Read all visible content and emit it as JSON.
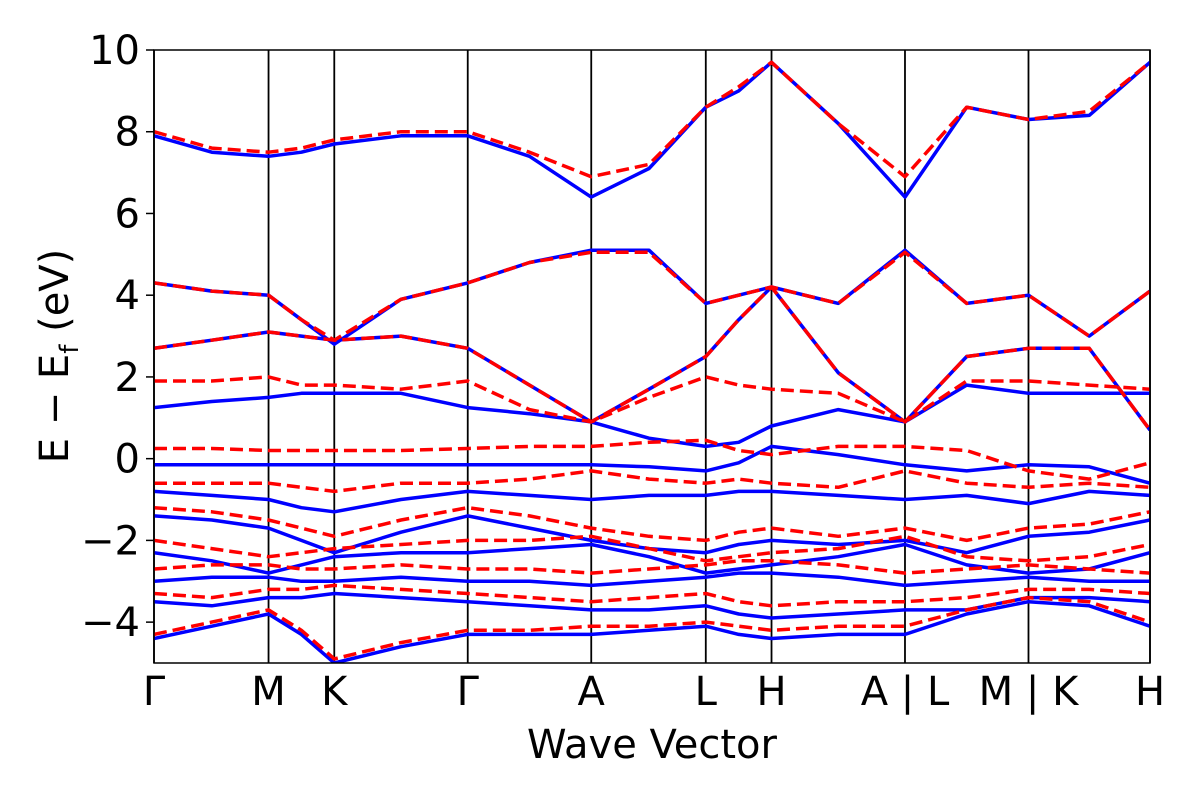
{
  "chart_data": {
    "type": "line",
    "xlabel": "Wave Vector",
    "ylabel": [
      "E − E",
      "f",
      " (eV)"
    ],
    "xlim": [
      0,
      1
    ],
    "ylim": [
      -5,
      10
    ],
    "xticks": [
      {
        "value": 0,
        "label": "Γ"
      },
      {
        "value": 0.115,
        "label": "M"
      },
      {
        "value": 0.181,
        "label": "K"
      },
      {
        "value": 0.315,
        "label": "Γ"
      },
      {
        "value": 0.439,
        "label": "A"
      },
      {
        "value": 0.554,
        "label": "L"
      },
      {
        "value": 0.62,
        "label": "H"
      },
      {
        "value": 0.754,
        "label": "A | L"
      },
      {
        "value": 0.878,
        "label": "M | K"
      },
      {
        "value": 1,
        "label": "H"
      }
    ],
    "yticks": [
      {
        "value": -4,
        "label": "−4"
      },
      {
        "value": -2,
        "label": "−2"
      },
      0,
      2,
      4,
      6,
      8,
      10
    ],
    "vlines": true,
    "x": [
      0,
      0.058,
      0.115,
      0.148,
      0.181,
      0.248,
      0.315,
      0.377,
      0.439,
      0.497,
      0.554,
      0.587,
      0.62,
      0.687,
      0.754,
      0.816,
      0.878,
      0.939,
      1
    ],
    "series": [
      {
        "color": "#0000ff",
        "dashed": false,
        "values": [
          7.9,
          7.5,
          7.4,
          7.5,
          7.7,
          7.9,
          7.9,
          7.4,
          6.4,
          7.1,
          8.6,
          9.0,
          9.7,
          8.2,
          6.4,
          8.6,
          8.3,
          8.4,
          9.7
        ]
      },
      {
        "color": "#0000ff",
        "dashed": false,
        "values": [
          4.3,
          4.1,
          4.0,
          3.4,
          2.8,
          3.9,
          4.3,
          4.8,
          5.1,
          5.1,
          3.8,
          4.0,
          4.2,
          3.8,
          5.1,
          3.8,
          4.0,
          3.0,
          4.1
        ]
      },
      {
        "color": "#0000ff",
        "dashed": false,
        "values": [
          2.7,
          2.9,
          3.1,
          3.0,
          2.9,
          3.0,
          2.7,
          1.8,
          0.9,
          1.7,
          2.5,
          3.4,
          4.2,
          2.1,
          0.9,
          2.5,
          2.7,
          2.7,
          0.7
        ]
      },
      {
        "color": "#0000ff",
        "dashed": false,
        "values": [
          1.25,
          1.4,
          1.5,
          1.6,
          1.6,
          1.6,
          1.25,
          1.1,
          0.9,
          0.5,
          0.3,
          0.4,
          0.8,
          1.2,
          0.9,
          1.8,
          1.6,
          1.6,
          1.6
        ]
      },
      {
        "color": "#0000ff",
        "dashed": false,
        "values": [
          -0.15,
          -0.15,
          -0.15,
          -0.15,
          -0.15,
          -0.15,
          -0.15,
          -0.15,
          -0.15,
          -0.2,
          -0.3,
          -0.1,
          0.3,
          0.1,
          -0.15,
          -0.3,
          -0.15,
          -0.2,
          -0.6
        ]
      },
      {
        "color": "#0000ff",
        "dashed": false,
        "values": [
          -0.8,
          -0.9,
          -1.0,
          -1.2,
          -1.3,
          -1.0,
          -0.8,
          -0.9,
          -1.0,
          -0.9,
          -0.9,
          -0.8,
          -0.8,
          -0.9,
          -1.0,
          -0.9,
          -1.1,
          -0.8,
          -0.9
        ]
      },
      {
        "color": "#0000ff",
        "dashed": false,
        "values": [
          -1.4,
          -1.5,
          -1.7,
          -2.0,
          -2.3,
          -1.8,
          -1.4,
          -1.7,
          -2.0,
          -2.2,
          -2.3,
          -2.1,
          -2.0,
          -2.1,
          -2.0,
          -2.3,
          -1.9,
          -1.8,
          -1.5
        ]
      },
      {
        "color": "#0000ff",
        "dashed": false,
        "values": [
          -2.3,
          -2.5,
          -2.8,
          -2.6,
          -2.4,
          -2.3,
          -2.3,
          -2.2,
          -2.1,
          -2.4,
          -2.8,
          -2.7,
          -2.6,
          -2.4,
          -2.1,
          -2.6,
          -2.8,
          -2.7,
          -2.3
        ]
      },
      {
        "color": "#0000ff",
        "dashed": false,
        "values": [
          -3.0,
          -2.9,
          -2.9,
          -3.0,
          -3.0,
          -2.9,
          -3.0,
          -3.0,
          -3.1,
          -3.0,
          -2.9,
          -2.8,
          -2.8,
          -2.9,
          -3.1,
          -3.0,
          -2.9,
          -3.0,
          -3.0
        ]
      },
      {
        "color": "#0000ff",
        "dashed": false,
        "values": [
          -3.5,
          -3.6,
          -3.4,
          -3.4,
          -3.3,
          -3.4,
          -3.5,
          -3.6,
          -3.7,
          -3.7,
          -3.6,
          -3.8,
          -3.9,
          -3.8,
          -3.7,
          -3.7,
          -3.4,
          -3.4,
          -3.5
        ]
      },
      {
        "color": "#0000ff",
        "dashed": false,
        "values": [
          -4.4,
          -4.1,
          -3.8,
          -4.3,
          -5.0,
          -4.6,
          -4.3,
          -4.3,
          -4.3,
          -4.2,
          -4.1,
          -4.3,
          -4.4,
          -4.3,
          -4.3,
          -3.8,
          -3.5,
          -3.6,
          -4.1
        ]
      },
      {
        "color": "#ff0000",
        "dashed": true,
        "values": [
          8.0,
          7.6,
          7.5,
          7.6,
          7.8,
          8.0,
          8.0,
          7.5,
          6.9,
          7.2,
          8.6,
          9.1,
          9.7,
          8.2,
          6.9,
          8.6,
          8.3,
          8.5,
          9.7
        ]
      },
      {
        "color": "#ff0000",
        "dashed": true,
        "values": [
          4.3,
          4.1,
          4.0,
          3.4,
          2.9,
          3.9,
          4.3,
          4.8,
          5.05,
          5.05,
          3.8,
          4.0,
          4.2,
          3.8,
          5.05,
          3.8,
          4.0,
          3.0,
          4.1
        ]
      },
      {
        "color": "#ff0000",
        "dashed": true,
        "values": [
          2.7,
          2.9,
          3.1,
          3.0,
          2.9,
          3.0,
          2.7,
          1.8,
          0.9,
          1.7,
          2.5,
          3.4,
          4.2,
          2.1,
          0.9,
          2.5,
          2.7,
          2.7,
          0.7
        ]
      },
      {
        "color": "#ff0000",
        "dashed": true,
        "values": [
          1.9,
          1.9,
          2.0,
          1.8,
          1.8,
          1.7,
          1.9,
          1.2,
          0.9,
          1.5,
          2.0,
          1.8,
          1.7,
          1.6,
          0.9,
          1.9,
          1.9,
          1.8,
          1.7
        ]
      },
      {
        "color": "#ff0000",
        "dashed": true,
        "values": [
          0.25,
          0.25,
          0.2,
          0.2,
          0.2,
          0.2,
          0.25,
          0.3,
          0.3,
          0.4,
          0.45,
          0.2,
          0.1,
          0.3,
          0.3,
          0.2,
          -0.3,
          -0.5,
          -0.1
        ]
      },
      {
        "color": "#ff0000",
        "dashed": true,
        "values": [
          -0.6,
          -0.6,
          -0.6,
          -0.7,
          -0.8,
          -0.6,
          -0.6,
          -0.5,
          -0.3,
          -0.5,
          -0.6,
          -0.5,
          -0.6,
          -0.7,
          -0.3,
          -0.6,
          -0.7,
          -0.6,
          -0.7
        ]
      },
      {
        "color": "#ff0000",
        "dashed": true,
        "values": [
          -1.2,
          -1.3,
          -1.5,
          -1.7,
          -1.9,
          -1.5,
          -1.2,
          -1.4,
          -1.7,
          -1.9,
          -2.0,
          -1.8,
          -1.7,
          -1.9,
          -1.7,
          -2.0,
          -1.7,
          -1.6,
          -1.3
        ]
      },
      {
        "color": "#ff0000",
        "dashed": true,
        "values": [
          -2.0,
          -2.2,
          -2.4,
          -2.3,
          -2.2,
          -2.1,
          -2.0,
          -2.0,
          -1.9,
          -2.2,
          -2.5,
          -2.4,
          -2.3,
          -2.2,
          -1.9,
          -2.4,
          -2.5,
          -2.4,
          -2.1
        ]
      },
      {
        "color": "#ff0000",
        "dashed": true,
        "values": [
          -2.7,
          -2.6,
          -2.6,
          -2.7,
          -2.7,
          -2.6,
          -2.7,
          -2.7,
          -2.8,
          -2.7,
          -2.6,
          -2.5,
          -2.5,
          -2.6,
          -2.8,
          -2.7,
          -2.6,
          -2.7,
          -2.8
        ]
      },
      {
        "color": "#ff0000",
        "dashed": true,
        "values": [
          -3.3,
          -3.4,
          -3.2,
          -3.2,
          -3.1,
          -3.2,
          -3.3,
          -3.4,
          -3.5,
          -3.4,
          -3.3,
          -3.5,
          -3.6,
          -3.5,
          -3.5,
          -3.4,
          -3.2,
          -3.2,
          -3.3
        ]
      },
      {
        "color": "#ff0000",
        "dashed": true,
        "values": [
          -4.3,
          -4.0,
          -3.7,
          -4.2,
          -4.9,
          -4.5,
          -4.2,
          -4.2,
          -4.1,
          -4.1,
          -4.0,
          -4.1,
          -4.2,
          -4.1,
          -4.1,
          -3.7,
          -3.4,
          -3.5,
          -4.0
        ]
      }
    ]
  }
}
